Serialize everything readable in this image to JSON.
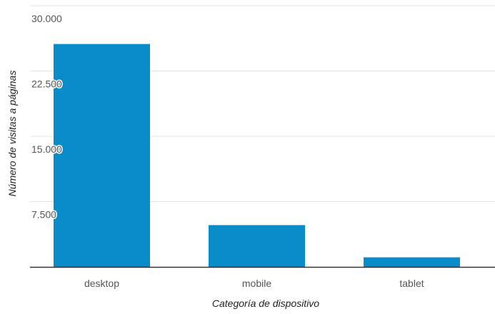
{
  "chart_data": {
    "type": "bar",
    "title": "",
    "xlabel": "Categoría de dispositivo",
    "ylabel": "Número de visitas a páginas",
    "categories": [
      "desktop",
      "mobile",
      "tablet"
    ],
    "values": [
      25600,
      4800,
      1100
    ],
    "ylim": [
      0,
      30000
    ],
    "yticks": [
      {
        "value": 7500,
        "label": "7.500"
      },
      {
        "value": 15000,
        "label": "15.000"
      },
      {
        "value": 22500,
        "label": "22.500"
      },
      {
        "value": 30000,
        "label": "30.000"
      }
    ],
    "grid": true,
    "legend": "none",
    "colors": {
      "bar": "#0a8cc9",
      "grid": "#e3e3e3",
      "axis": "#333333"
    }
  }
}
